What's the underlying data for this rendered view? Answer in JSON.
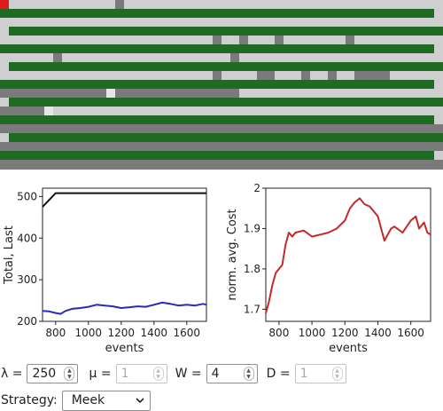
{
  "colors": {
    "lane_bg": "#cfcfcf",
    "lane_bar": "#1f6b24",
    "lane_block": "#7a7a7a",
    "lane_gap": "#e6e6e6",
    "lane_marker": "#e01b1b",
    "series_total": "#111111",
    "series_last": "#2a2ab8",
    "series_cost": "#c62828"
  },
  "chart_data": [
    {
      "type": "line",
      "title": "",
      "xlabel": "events",
      "ylabel": "Total, Last",
      "xlim": [
        720,
        1720
      ],
      "ylim": [
        200,
        520
      ],
      "xticks": [
        800,
        1000,
        1200,
        1400,
        1600
      ],
      "yticks": [
        200,
        300,
        400,
        500
      ],
      "series": [
        {
          "key": "total",
          "x": [
            720,
            800,
            1720
          ],
          "values": [
            475,
            508,
            508
          ]
        },
        {
          "key": "last",
          "x": [
            720,
            760,
            800,
            830,
            860,
            900,
            950,
            1000,
            1050,
            1100,
            1150,
            1200,
            1250,
            1300,
            1350,
            1400,
            1450,
            1500,
            1550,
            1600,
            1650,
            1700,
            1720
          ],
          "values": [
            225,
            224,
            220,
            218,
            225,
            230,
            232,
            235,
            240,
            238,
            236,
            232,
            234,
            236,
            235,
            240,
            245,
            242,
            238,
            240,
            238,
            242,
            240
          ]
        }
      ]
    },
    {
      "type": "line",
      "title": "",
      "xlabel": "events",
      "ylabel": "norm. avg. Cost",
      "xlim": [
        720,
        1720
      ],
      "ylim": [
        1.67,
        2.0
      ],
      "xticks": [
        800,
        1000,
        1200,
        1400,
        1600
      ],
      "yticks": [
        1.7,
        1.8,
        1.9,
        2
      ],
      "series": [
        {
          "key": "cost",
          "x": [
            720,
            740,
            760,
            780,
            800,
            820,
            840,
            860,
            880,
            900,
            950,
            1000,
            1050,
            1100,
            1150,
            1200,
            1230,
            1260,
            1290,
            1320,
            1350,
            1380,
            1400,
            1420,
            1440,
            1460,
            1480,
            1500,
            1550,
            1600,
            1630,
            1650,
            1680,
            1700,
            1720
          ],
          "values": [
            1.69,
            1.72,
            1.76,
            1.79,
            1.8,
            1.81,
            1.86,
            1.89,
            1.88,
            1.89,
            1.895,
            1.88,
            1.885,
            1.89,
            1.9,
            1.92,
            1.95,
            1.965,
            1.975,
            1.96,
            1.955,
            1.94,
            1.93,
            1.9,
            1.87,
            1.885,
            1.9,
            1.905,
            1.89,
            1.92,
            1.93,
            1.9,
            1.915,
            1.89,
            1.885
          ]
        }
      ]
    }
  ],
  "controls": {
    "lambda": {
      "label": "λ =",
      "value": "250"
    },
    "mu": {
      "label": "μ =",
      "value": "1"
    },
    "w": {
      "label": "W =",
      "value": "4"
    },
    "d": {
      "label": "D =",
      "value": "1"
    },
    "strategy": {
      "label": "Strategy:",
      "value": "Meek"
    }
  }
}
